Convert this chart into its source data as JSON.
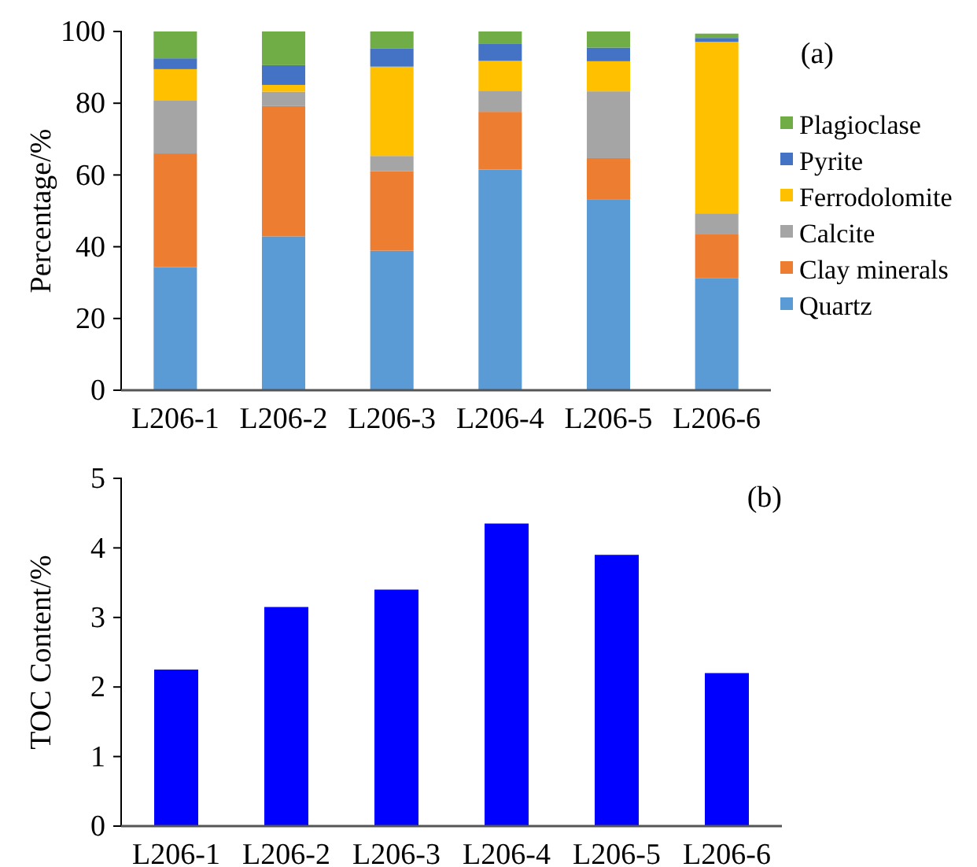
{
  "chart_data": [
    {
      "type": "bar",
      "stacked": true,
      "ylabel": "Percentage/%",
      "categories": [
        "L206-1",
        "L206-2",
        "L206-3",
        "L206-4",
        "L206-5",
        "L206-6"
      ],
      "ylim": [
        0,
        100
      ],
      "yticks": [
        0,
        20,
        40,
        60,
        80,
        100
      ],
      "grid": false,
      "legend": "right",
      "annotations": [
        "(a)"
      ],
      "series": [
        {
          "name": "Quartz",
          "color": "#5b9bd5",
          "values": [
            34.3,
            42.9,
            38.9,
            61.5,
            53.1,
            31.3
          ]
        },
        {
          "name": "Clay minerals",
          "color": "#ed7d31",
          "values": [
            31.7,
            36.3,
            22.2,
            16.1,
            11.6,
            12.3
          ]
        },
        {
          "name": "Calcite",
          "color": "#a5a5a5",
          "values": [
            14.7,
            4.0,
            4.2,
            5.9,
            18.6,
            5.7
          ]
        },
        {
          "name": "Ferrodolomite",
          "color": "#ffc000",
          "values": [
            8.8,
            1.9,
            24.9,
            8.3,
            8.4,
            47.8
          ]
        },
        {
          "name": "Pyrite",
          "color": "#4472c4",
          "values": [
            3.0,
            5.5,
            5.0,
            4.7,
            3.8,
            1.1
          ]
        },
        {
          "name": "Plagioclase",
          "color": "#70ad47",
          "values": [
            7.5,
            9.4,
            4.8,
            3.5,
            4.5,
            1.2
          ]
        }
      ]
    },
    {
      "type": "bar",
      "ylabel": "TOC Content/%",
      "categories": [
        "L206-1",
        "L206-2",
        "L206-3",
        "L206-4",
        "L206-5",
        "L206-6"
      ],
      "ylim": [
        0,
        5
      ],
      "yticks": [
        0,
        1,
        2,
        3,
        4,
        5
      ],
      "grid": false,
      "annotations": [
        "(b)"
      ],
      "series": [
        {
          "color": "#0000ff",
          "values": [
            2.25,
            3.15,
            3.4,
            4.35,
            3.9,
            2.2
          ]
        }
      ]
    }
  ]
}
